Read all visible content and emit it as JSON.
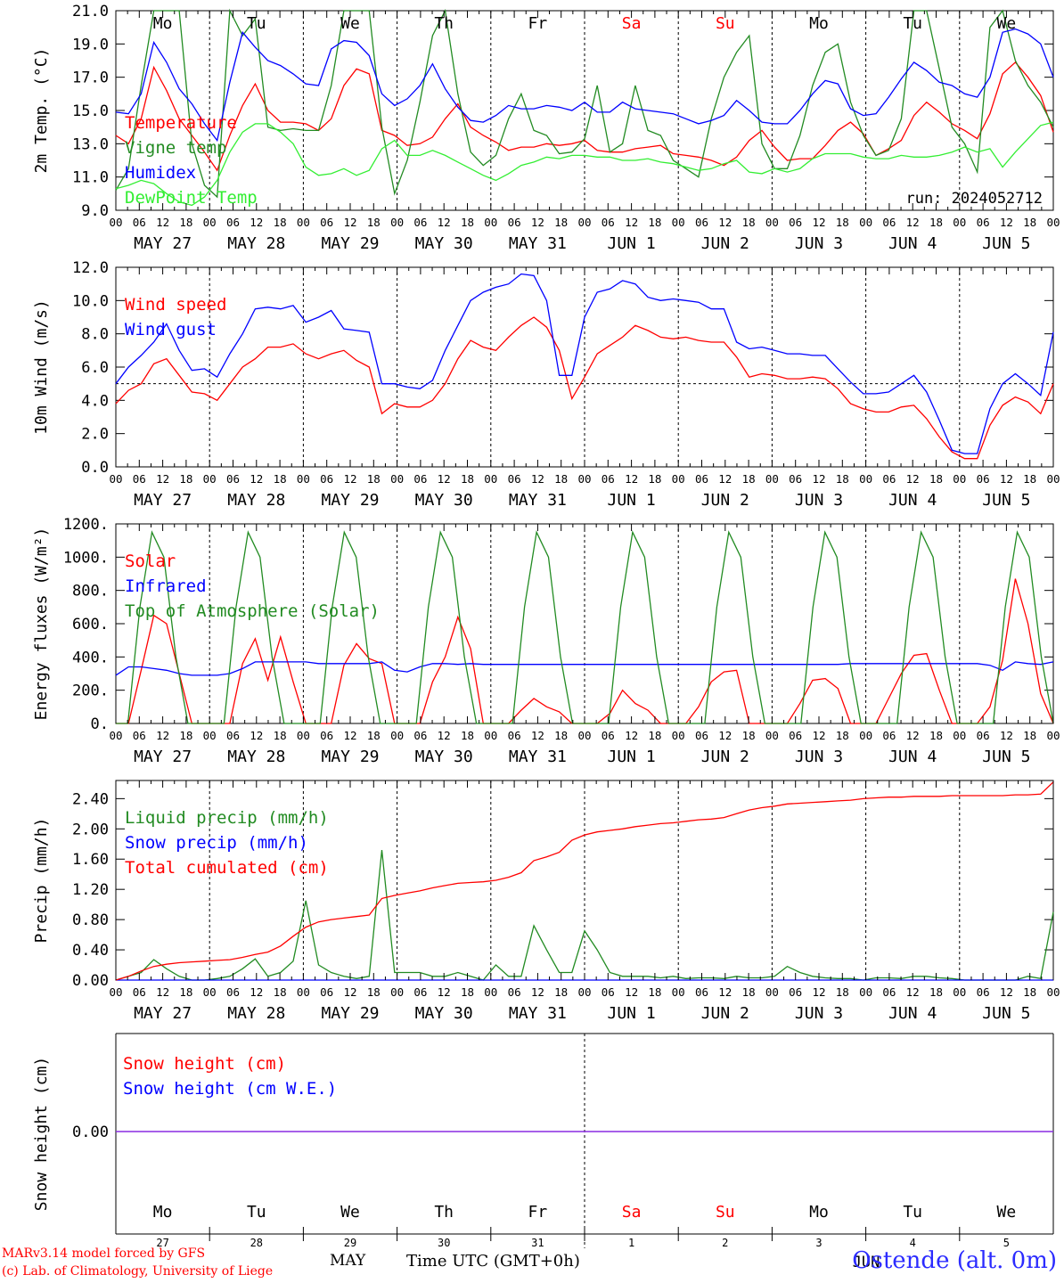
{
  "station": "Ostende (alt. 0m)",
  "credits": [
    "MARv3.14 model forced by GFS",
    "(c) Lab. of Climatology, University of Liege"
  ],
  "time_axis": {
    "label": "Time UTC (GMT+0h)",
    "month_label": "MAY",
    "hour_ticks": [
      "00",
      "06",
      "12",
      "18"
    ],
    "date_labels": [
      "MAY 27",
      "MAY 28",
      "MAY 29",
      "MAY 30",
      "MAY 31",
      "JUN  1",
      "JUN  2",
      "JUN  3",
      "JUN  4",
      "JUN  5"
    ],
    "weekdays": [
      "Mo",
      "Tu",
      "We",
      "Th",
      "Fr",
      "Sa",
      "Su",
      "Mo",
      "Tu",
      "We"
    ],
    "weekend_color": "#ff0000",
    "day_numbers": [
      "27",
      "28",
      "29",
      "30",
      "31",
      "1",
      "2",
      "3",
      "4",
      "5"
    ],
    "jun_label": "JUN"
  },
  "chart_data": [
    {
      "type": "line",
      "ylabel": "2m Temp. (°C)",
      "ylim": [
        9.0,
        21.0
      ],
      "yticks": [
        "9.0",
        "11.0",
        "13.0",
        "15.0",
        "17.0",
        "19.0",
        "21.0"
      ],
      "annotation": "run: 2024052712",
      "x_start": "2024-05-27 00:00",
      "x_step_hours": 3,
      "series": [
        {
          "name": "Temperature",
          "color": "#ff0000",
          "values": [
            13.5,
            13.0,
            14.5,
            17.6,
            16.2,
            14.5,
            13.5,
            12.5,
            11.4,
            13.5,
            15.3,
            16.6,
            15.0,
            14.3,
            14.3,
            14.2,
            13.8,
            14.5,
            16.5,
            17.5,
            17.2,
            13.8,
            13.5,
            12.9,
            13.0,
            13.4,
            14.5,
            15.4,
            14.0,
            13.5,
            13.1,
            12.6,
            12.8,
            12.8,
            13.0,
            12.9,
            13.0,
            13.2,
            12.6,
            12.5,
            12.5,
            12.7,
            12.8,
            12.9,
            12.4,
            12.3,
            12.2,
            12.0,
            11.7,
            12.2,
            13.2,
            13.8,
            12.8,
            12.0,
            12.1,
            12.1,
            12.9,
            13.8,
            14.3,
            13.6,
            12.3,
            12.7,
            13.2,
            14.7,
            15.5,
            14.9,
            14.2,
            13.8,
            13.3,
            14.8,
            17.2,
            17.9,
            17.0,
            15.9,
            13.7
          ]
        },
        {
          "name": "Vigne temp",
          "color": "#228b22",
          "values": [
            10.2,
            11.5,
            16.5,
            21.0,
            21.0,
            21.0,
            13.0,
            10.5,
            9.8,
            21.0,
            19.5,
            20.5,
            14.0,
            13.8,
            13.9,
            13.8,
            13.8,
            16.5,
            21.0,
            21.0,
            21.0,
            14.0,
            10.0,
            12.0,
            15.5,
            19.5,
            21.0,
            16.0,
            12.5,
            11.7,
            12.3,
            14.5,
            16.0,
            13.8,
            13.5,
            12.4,
            12.5,
            13.3,
            16.5,
            12.5,
            13.0,
            16.5,
            13.8,
            13.5,
            12.0,
            11.5,
            11.0,
            14.5,
            17.0,
            18.5,
            19.5,
            13.0,
            11.5,
            11.5,
            13.5,
            16.5,
            18.5,
            19.0,
            15.5,
            13.5,
            12.3,
            12.6,
            14.5,
            21.0,
            21.0,
            17.5,
            14.0,
            13.0,
            11.3,
            20.0,
            21.0,
            18.0,
            16.5,
            15.5,
            14.0
          ]
        },
        {
          "name": "Humidex",
          "color": "#0000ff",
          "values": [
            14.9,
            14.8,
            16.0,
            19.1,
            17.9,
            16.3,
            15.4,
            14.2,
            13.2,
            16.7,
            19.7,
            18.8,
            18.0,
            17.7,
            17.2,
            16.6,
            16.5,
            18.7,
            19.2,
            19.1,
            18.3,
            16.0,
            15.3,
            15.7,
            16.5,
            17.8,
            16.3,
            15.2,
            14.4,
            14.3,
            14.7,
            15.3,
            15.1,
            15.1,
            15.3,
            15.2,
            15.0,
            15.5,
            14.9,
            14.9,
            15.5,
            15.1,
            15.0,
            14.9,
            14.8,
            14.5,
            14.2,
            14.4,
            14.7,
            15.6,
            15.0,
            14.3,
            14.2,
            14.2,
            15.0,
            16.0,
            16.8,
            16.6,
            15.1,
            14.7,
            14.8,
            15.8,
            16.9,
            17.9,
            17.4,
            16.7,
            16.5,
            16.0,
            15.8,
            17.0,
            19.7,
            19.9,
            19.6,
            19.0,
            17.0
          ]
        },
        {
          "name": "DewPoint Temp",
          "color": "#33ee33",
          "values": [
            10.3,
            10.5,
            10.8,
            10.6,
            10.0,
            9.5,
            9.3,
            9.8,
            10.8,
            12.5,
            13.7,
            14.2,
            14.2,
            13.7,
            13.0,
            11.6,
            11.1,
            11.2,
            11.5,
            11.1,
            11.4,
            12.7,
            13.2,
            12.3,
            12.3,
            12.6,
            12.3,
            11.9,
            11.5,
            11.1,
            10.8,
            11.2,
            11.7,
            11.9,
            12.2,
            12.1,
            12.3,
            12.3,
            12.2,
            12.2,
            12.0,
            12.0,
            12.1,
            11.9,
            11.8,
            11.6,
            11.4,
            11.5,
            11.8,
            12.0,
            11.3,
            11.2,
            11.5,
            11.3,
            11.5,
            12.1,
            12.4,
            12.4,
            12.4,
            12.2,
            12.1,
            12.1,
            12.3,
            12.2,
            12.2,
            12.3,
            12.5,
            12.8,
            12.5,
            12.7,
            11.6,
            12.5,
            13.3,
            14.1,
            14.3
          ]
        }
      ]
    },
    {
      "type": "line",
      "ylabel": "10m Wind (m/s)",
      "ylim": [
        0.0,
        12.0
      ],
      "yticks": [
        "0.0",
        "2.0",
        "4.0",
        "6.0",
        "8.0",
        "10.0",
        "12.0"
      ],
      "reference_line": 5.0,
      "x_start": "2024-05-27 00:00",
      "x_step_hours": 3,
      "series": [
        {
          "name": "Wind speed",
          "color": "#ff0000",
          "values": [
            3.8,
            4.6,
            5.0,
            6.2,
            6.5,
            5.5,
            4.5,
            4.4,
            4.0,
            5.0,
            6.0,
            6.5,
            7.2,
            7.2,
            7.4,
            6.8,
            6.5,
            6.8,
            7.0,
            6.4,
            6.0,
            3.2,
            3.8,
            3.6,
            3.6,
            4.0,
            5.0,
            6.5,
            7.6,
            7.2,
            7.0,
            7.8,
            8.5,
            9.0,
            8.4,
            7.0,
            4.1,
            5.4,
            6.8,
            7.3,
            7.8,
            8.5,
            8.2,
            7.8,
            7.7,
            7.8,
            7.6,
            7.5,
            7.5,
            6.6,
            5.4,
            5.6,
            5.5,
            5.3,
            5.3,
            5.4,
            5.3,
            4.7,
            3.8,
            3.5,
            3.3,
            3.3,
            3.6,
            3.7,
            2.9,
            1.8,
            0.9,
            0.5,
            0.5,
            2.5,
            3.7,
            4.2,
            3.9,
            3.2,
            5.0
          ]
        },
        {
          "name": "Wind gust",
          "color": "#0000ff",
          "values": [
            5.0,
            6.0,
            6.7,
            7.5,
            8.6,
            7.0,
            5.8,
            5.9,
            5.4,
            6.8,
            8.0,
            9.5,
            9.6,
            9.5,
            9.7,
            8.7,
            9.0,
            9.4,
            8.3,
            8.2,
            8.1,
            5.0,
            5.0,
            4.8,
            4.7,
            5.2,
            7.0,
            8.5,
            10.0,
            10.5,
            10.8,
            11.0,
            11.6,
            11.5,
            10.0,
            5.5,
            5.5,
            9.0,
            10.5,
            10.7,
            11.2,
            11.0,
            10.2,
            10.0,
            10.1,
            10.0,
            9.9,
            9.5,
            9.5,
            7.5,
            7.1,
            7.2,
            7.0,
            6.8,
            6.8,
            6.7,
            6.7,
            5.9,
            5.1,
            4.4,
            4.4,
            4.5,
            5.0,
            5.5,
            4.5,
            2.8,
            1.0,
            0.8,
            0.8,
            3.5,
            5.0,
            5.6,
            5.0,
            4.3,
            8.1
          ]
        }
      ]
    },
    {
      "type": "line",
      "ylabel": "Energy fluxes (W/m²)",
      "ylim": [
        0,
        1200
      ],
      "yticks": [
        "0.",
        "200.",
        "400.",
        "600.",
        "800.",
        "1000.",
        "1200."
      ],
      "x_start": "2024-05-27 00:00",
      "x_step_hours": 3,
      "series": [
        {
          "name": "Solar",
          "color": "#ff0000",
          "values": [
            0,
            0,
            320,
            650,
            600,
            300,
            0,
            0,
            0,
            0,
            360,
            510,
            260,
            520,
            250,
            0,
            0,
            0,
            350,
            480,
            390,
            360,
            0,
            0,
            0,
            250,
            400,
            640,
            450,
            0,
            0,
            0,
            80,
            150,
            100,
            70,
            0,
            0,
            0,
            60,
            200,
            120,
            80,
            0,
            0,
            0,
            100,
            250,
            310,
            320,
            0,
            0,
            0,
            0,
            120,
            260,
            270,
            210,
            0,
            0,
            0,
            150,
            300,
            410,
            420,
            200,
            0,
            0,
            0,
            100,
            380,
            870,
            600,
            180,
            0
          ]
        },
        {
          "name": "Infrared",
          "color": "#0000ff",
          "values": [
            290,
            340,
            340,
            330,
            320,
            300,
            290,
            290,
            290,
            300,
            330,
            370,
            370,
            370,
            370,
            370,
            360,
            360,
            360,
            360,
            360,
            370,
            320,
            310,
            340,
            360,
            360,
            355,
            360,
            355,
            355,
            355,
            355,
            355,
            355,
            355,
            355,
            355,
            355,
            355,
            355,
            355,
            355,
            355,
            355,
            355,
            355,
            355,
            355,
            355,
            355,
            355,
            355,
            355,
            355,
            355,
            355,
            355,
            360,
            360,
            360,
            360,
            360,
            360,
            360,
            360,
            360,
            360,
            360,
            350,
            320,
            370,
            360,
            355,
            370
          ]
        },
        {
          "name": "Top of Atmosphere (Solar)",
          "color": "#228b22",
          "values": [
            0,
            0,
            700,
            1150,
            1000,
            400,
            0,
            0,
            0,
            0,
            700,
            1150,
            1000,
            400,
            0,
            0,
            0,
            0,
            700,
            1150,
            1000,
            400,
            0,
            0,
            0,
            0,
            700,
            1150,
            1000,
            400,
            0,
            0,
            0,
            0,
            700,
            1150,
            1000,
            400,
            0,
            0,
            0,
            0,
            700,
            1150,
            1000,
            400,
            0,
            0,
            0,
            0,
            700,
            1150,
            1000,
            400,
            0,
            0,
            0,
            0,
            700,
            1150,
            1000,
            400,
            0,
            0,
            0,
            0,
            700,
            1150,
            1000,
            400,
            0,
            0,
            0,
            0,
            700,
            1150,
            1000,
            400,
            0
          ]
        }
      ]
    },
    {
      "type": "line",
      "ylabel": "Precip (mm/h)",
      "ylim": [
        0.0,
        2.64
      ],
      "yticks": [
        "0.00",
        "0.40",
        "0.80",
        "1.20",
        "1.60",
        "2.00",
        "2.40"
      ],
      "x_start": "2024-05-27 00:00",
      "x_step_hours": 3,
      "series": [
        {
          "name": "Liquid precip (mm/h)",
          "color": "#228b22",
          "values": [
            0.0,
            0.05,
            0.1,
            0.27,
            0.15,
            0.05,
            0.0,
            0.0,
            0.02,
            0.05,
            0.15,
            0.28,
            0.05,
            0.1,
            0.25,
            1.05,
            0.2,
            0.1,
            0.05,
            0.02,
            0.05,
            1.72,
            0.1,
            0.1,
            0.1,
            0.05,
            0.05,
            0.1,
            0.05,
            0.0,
            0.2,
            0.05,
            0.05,
            0.72,
            0.4,
            0.1,
            0.1,
            0.65,
            0.4,
            0.1,
            0.05,
            0.05,
            0.05,
            0.03,
            0.05,
            0.02,
            0.03,
            0.03,
            0.02,
            0.05,
            0.03,
            0.03,
            0.05,
            0.18,
            0.1,
            0.05,
            0.03,
            0.02,
            0.02,
            0.0,
            0.03,
            0.03,
            0.02,
            0.05,
            0.05,
            0.03,
            0.02,
            0.0,
            0.0,
            0.0,
            0.0,
            0.0,
            0.05,
            0.02,
            0.9
          ]
        },
        {
          "name": "Snow precip (mm/h)",
          "color": "#0000ff",
          "values": [
            0,
            0,
            0,
            0,
            0,
            0,
            0,
            0,
            0,
            0,
            0,
            0,
            0,
            0,
            0,
            0,
            0,
            0,
            0,
            0,
            0,
            0,
            0,
            0,
            0,
            0,
            0,
            0,
            0,
            0,
            0,
            0,
            0,
            0,
            0,
            0,
            0,
            0,
            0,
            0,
            0,
            0,
            0,
            0,
            0,
            0,
            0,
            0,
            0,
            0,
            0,
            0,
            0,
            0,
            0,
            0,
            0,
            0,
            0,
            0,
            0,
            0,
            0,
            0,
            0,
            0,
            0,
            0,
            0,
            0,
            0,
            0,
            0,
            0,
            0
          ]
        },
        {
          "name": "Total cumulated (cm)",
          "color": "#ff0000",
          "values": [
            0.0,
            0.05,
            0.12,
            0.18,
            0.21,
            0.23,
            0.24,
            0.25,
            0.26,
            0.27,
            0.3,
            0.34,
            0.37,
            0.45,
            0.58,
            0.7,
            0.77,
            0.8,
            0.82,
            0.84,
            0.86,
            1.08,
            1.12,
            1.15,
            1.18,
            1.22,
            1.25,
            1.28,
            1.29,
            1.3,
            1.32,
            1.36,
            1.42,
            1.58,
            1.63,
            1.69,
            1.85,
            1.92,
            1.96,
            1.98,
            2.0,
            2.03,
            2.05,
            2.07,
            2.08,
            2.1,
            2.12,
            2.13,
            2.15,
            2.2,
            2.25,
            2.28,
            2.3,
            2.33,
            2.34,
            2.35,
            2.36,
            2.37,
            2.38,
            2.4,
            2.41,
            2.42,
            2.42,
            2.43,
            2.43,
            2.43,
            2.44,
            2.44,
            2.44,
            2.44,
            2.44,
            2.45,
            2.45,
            2.46,
            2.62
          ]
        }
      ]
    },
    {
      "type": "line",
      "ylabel": "Snow height (cm)",
      "yticks": [
        "0.00"
      ],
      "x_start": "2024-05-27 00:00",
      "x_step_hours": 3,
      "series": [
        {
          "name": "Snow height (cm)",
          "color": "#ff0000",
          "values": [
            0,
            0
          ]
        },
        {
          "name": "Snow height (cm W.E.)",
          "color": "#0000ff",
          "values": [
            0,
            0
          ]
        }
      ]
    }
  ]
}
